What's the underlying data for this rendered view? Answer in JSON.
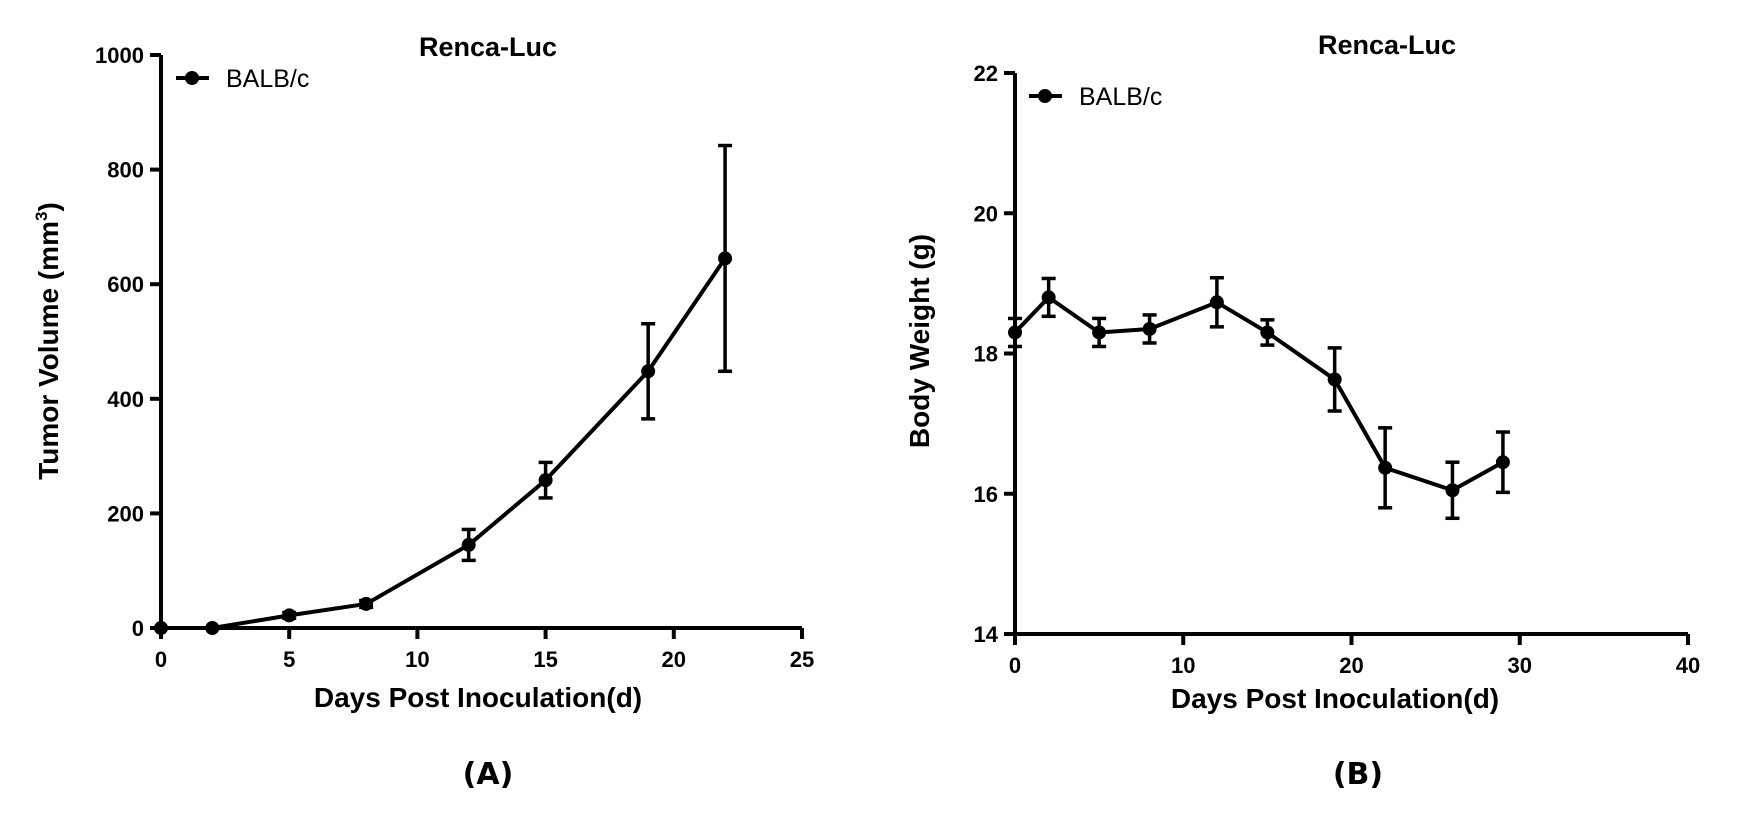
{
  "chart_data": [
    {
      "type": "line",
      "panel_label": "(A)",
      "title": "Renca-Luc",
      "xlabel": "Days Post Inoculation(d)",
      "ylabel": "Tumor Volume (mm",
      "ylabel_sup": "3",
      "ylabel_tail": ")",
      "xlim": [
        0,
        25
      ],
      "ylim": [
        0,
        1000
      ],
      "xticks": [
        0,
        5,
        10,
        15,
        20,
        25
      ],
      "yticks": [
        0,
        200,
        400,
        600,
        800,
        1000
      ],
      "grid": false,
      "legend": "top-left",
      "series": [
        {
          "name": "BALB/c",
          "x": [
            0,
            2,
            5,
            8,
            12,
            15,
            19,
            22
          ],
          "y": [
            0,
            0,
            22,
            42,
            145,
            258,
            448,
            645
          ],
          "err": [
            0,
            0,
            5,
            6,
            27,
            31,
            83,
            197
          ]
        }
      ]
    },
    {
      "type": "line",
      "panel_label": "(B)",
      "title": "Renca-Luc",
      "xlabel": "Days Post Inoculation(d)",
      "ylabel": "Body Weight (g)",
      "xlim": [
        0,
        40
      ],
      "ylim": [
        14,
        22
      ],
      "xticks": [
        0,
        10,
        20,
        30,
        40
      ],
      "yticks": [
        14,
        16,
        18,
        20,
        22
      ],
      "grid": false,
      "legend": "top-left",
      "series": [
        {
          "name": "BALB/c",
          "x": [
            0,
            2,
            5,
            8,
            12,
            15,
            19,
            22,
            26,
            29
          ],
          "y": [
            18.3,
            18.8,
            18.3,
            18.35,
            18.73,
            18.3,
            17.63,
            16.37,
            16.05,
            16.45
          ],
          "err": [
            0.2,
            0.27,
            0.2,
            0.2,
            0.35,
            0.18,
            0.45,
            0.57,
            0.4,
            0.43
          ]
        }
      ]
    }
  ]
}
